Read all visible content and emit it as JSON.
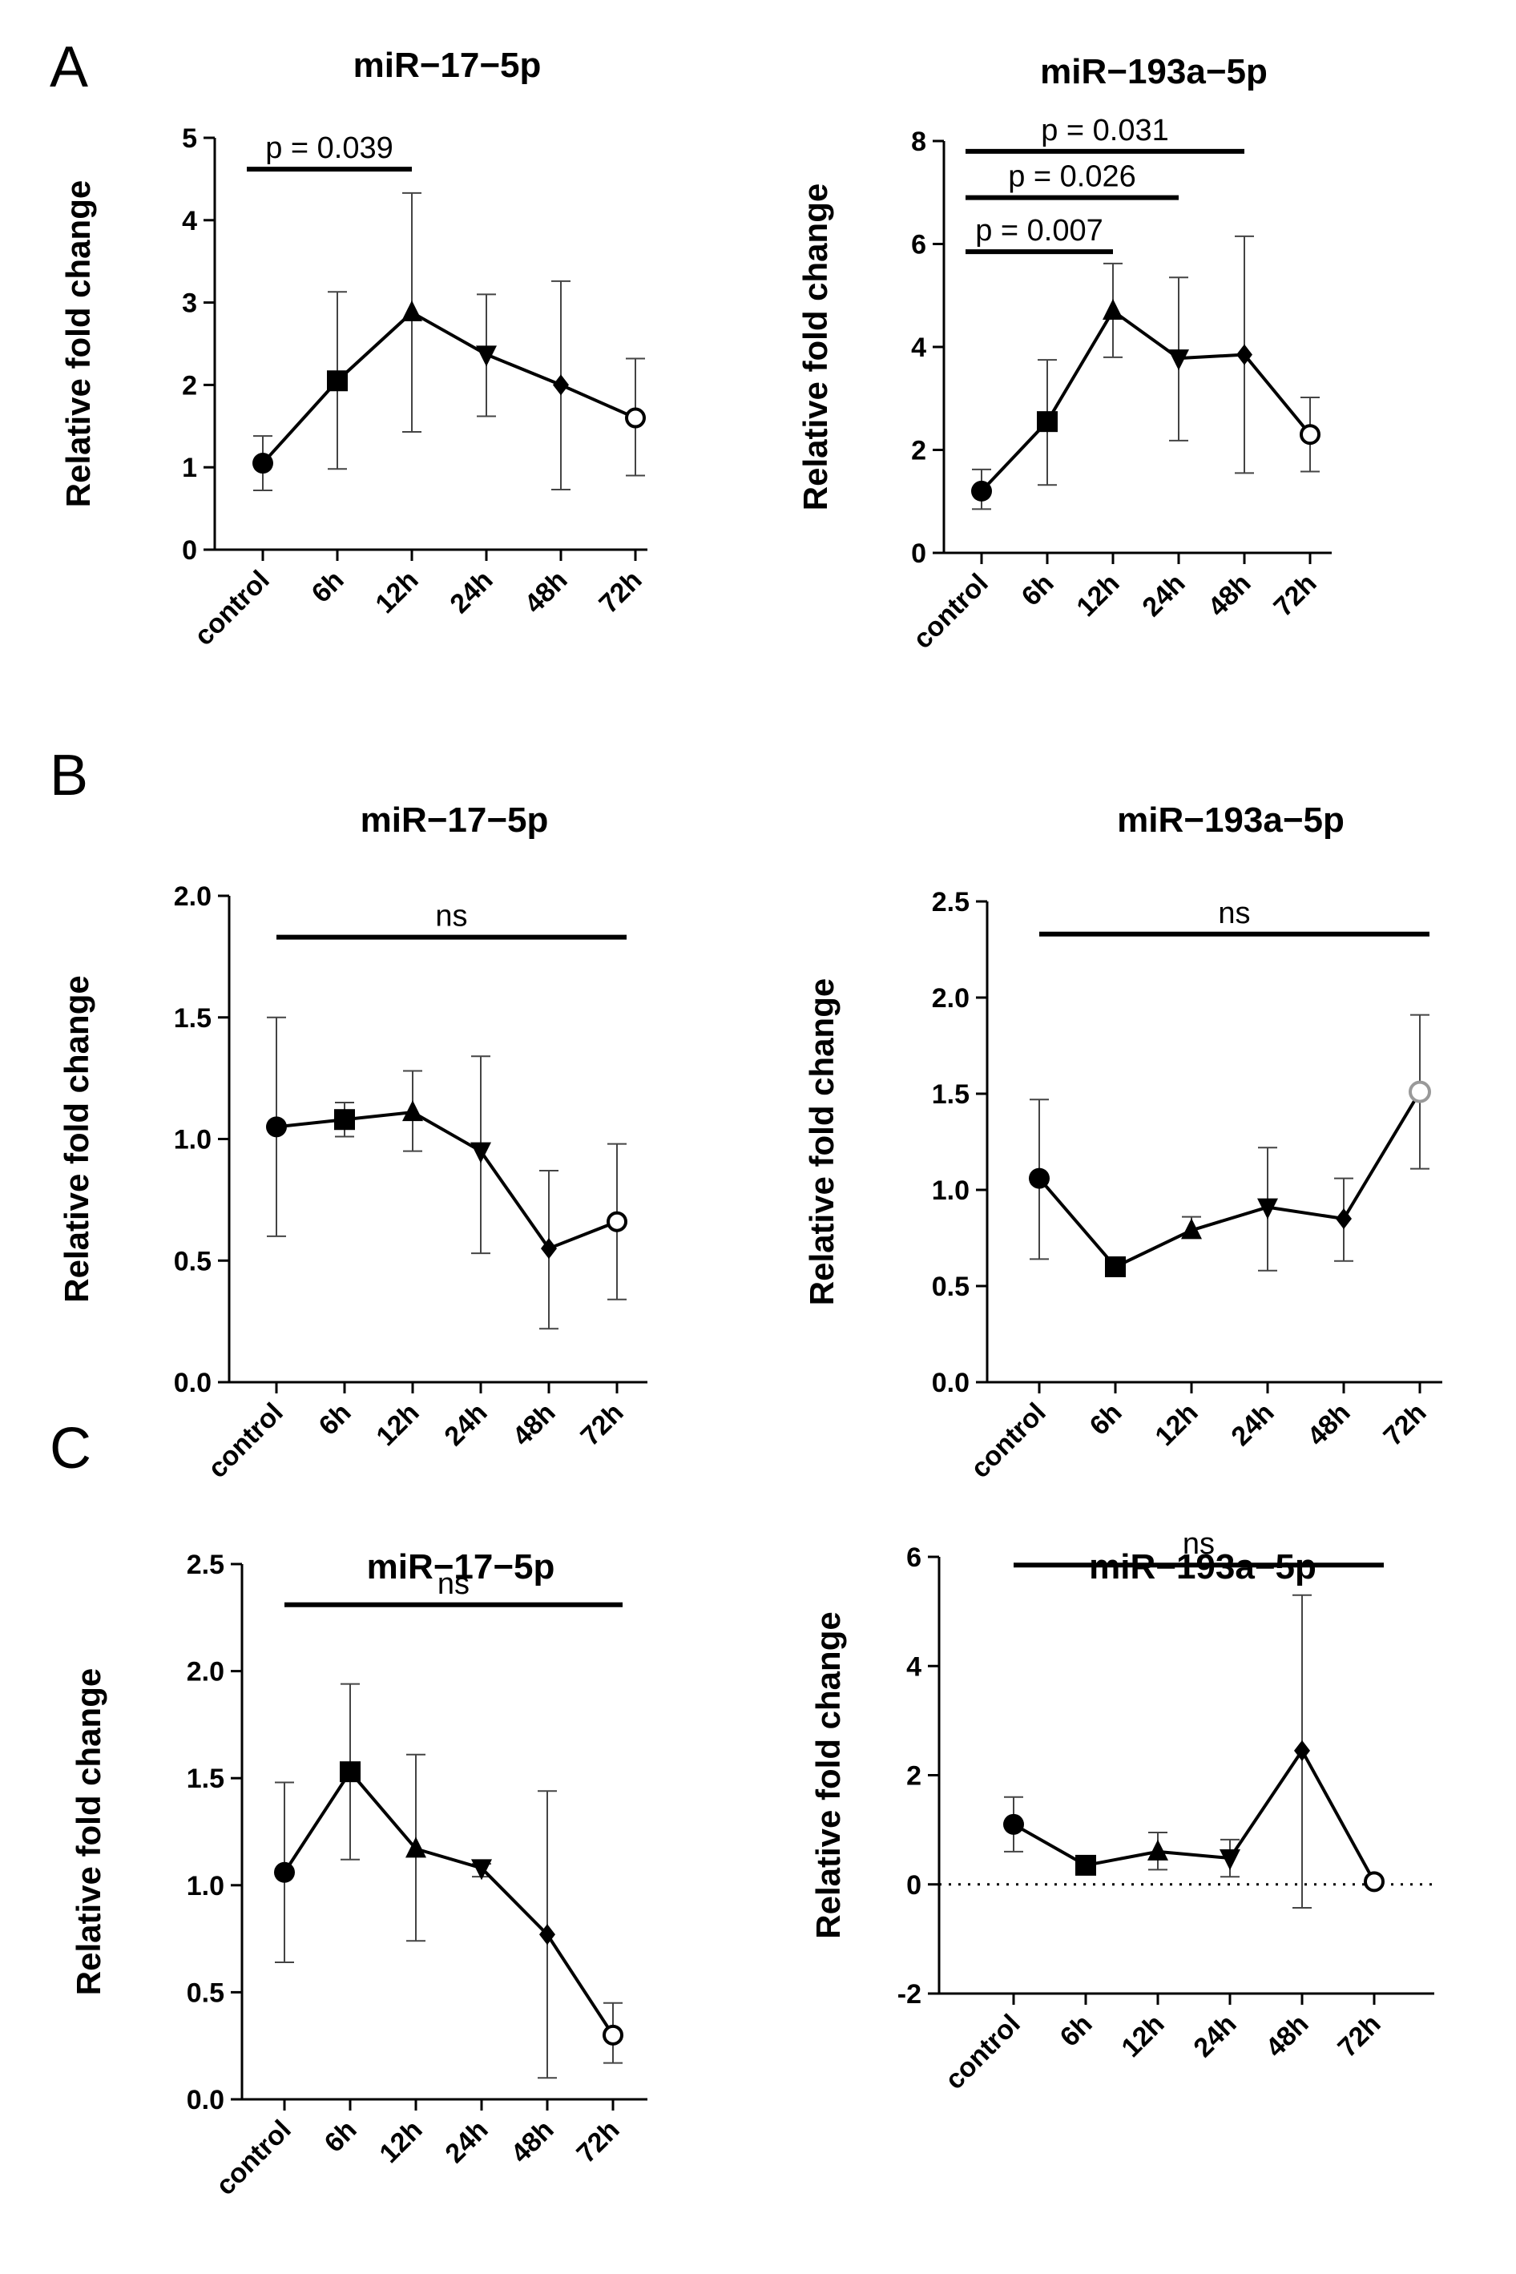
{
  "panels": [
    {
      "letter": "A"
    },
    {
      "letter": "B"
    },
    {
      "letter": "C"
    }
  ],
  "chart_data": [
    {
      "id": "A1",
      "type": "line",
      "title": "miR−17−5p",
      "ylabel": "Relative fold change",
      "ylim": [
        0,
        5
      ],
      "yticks": [
        0,
        1,
        2,
        3,
        4,
        5
      ],
      "ytick_labels": [
        "0",
        "1",
        "2",
        "3",
        "4",
        "5"
      ],
      "categories": [
        "control",
        "6h",
        "12h",
        "24h",
        "48h",
        "72h"
      ],
      "markers": [
        "circle",
        "square",
        "triangle-up",
        "triangle-down",
        "diamond",
        "circle-open"
      ],
      "values": [
        1.05,
        2.05,
        2.88,
        2.37,
        2.0,
        1.6
      ],
      "err_low": [
        0.72,
        0.98,
        1.43,
        1.62,
        0.73,
        0.9
      ],
      "err_high": [
        1.38,
        3.13,
        4.33,
        3.1,
        3.26,
        2.32
      ],
      "annotations": [
        {
          "text": "p = 0.039",
          "from": 0,
          "to": 2,
          "level": 4.62
        }
      ]
    },
    {
      "id": "A2",
      "type": "line",
      "title": "miR−193a−5p",
      "ylabel": "Relative fold change",
      "ylim": [
        0,
        8
      ],
      "yticks": [
        0,
        2,
        4,
        6,
        8
      ],
      "ytick_labels": [
        "0",
        "2",
        "4",
        "6",
        "8"
      ],
      "categories": [
        "control",
        "6h",
        "12h",
        "24h",
        "48h",
        "72h"
      ],
      "markers": [
        "circle",
        "square",
        "triangle-up",
        "triangle-down",
        "diamond",
        "circle-open"
      ],
      "values": [
        1.2,
        2.55,
        4.7,
        3.78,
        3.85,
        2.3
      ],
      "err_low": [
        0.85,
        1.32,
        3.8,
        2.18,
        1.55,
        1.58
      ],
      "err_high": [
        1.62,
        3.75,
        5.62,
        5.35,
        6.15,
        3.02
      ],
      "annotations": [
        {
          "text": "p = 0.031",
          "from": 0,
          "to": 4,
          "level": 7.8
        },
        {
          "text": "p = 0.026",
          "from": 0,
          "to": 3,
          "level": 6.9
        },
        {
          "text": "p = 0.007",
          "from": 0,
          "to": 2,
          "level": 5.85
        }
      ]
    },
    {
      "id": "B1",
      "type": "line",
      "title": "miR−17−5p",
      "ylabel": "Relative fold change",
      "ylim": [
        0,
        2.0
      ],
      "yticks": [
        0,
        0.5,
        1.0,
        1.5,
        2.0
      ],
      "ytick_labels": [
        "0.0",
        "0.5",
        "1.0",
        "1.5",
        "2.0"
      ],
      "categories": [
        "control",
        "6h",
        "12h",
        "24h",
        "48h",
        "72h"
      ],
      "markers": [
        "circle",
        "square",
        "triangle-up",
        "triangle-down",
        "diamond",
        "circle-open"
      ],
      "values": [
        1.05,
        1.08,
        1.11,
        0.95,
        0.55,
        0.66
      ],
      "err_low": [
        0.6,
        1.01,
        0.95,
        0.53,
        0.22,
        0.34
      ],
      "err_high": [
        1.5,
        1.15,
        1.28,
        1.34,
        0.87,
        0.98
      ],
      "annotations": [
        {
          "text": "ns",
          "from": 0,
          "to": 5,
          "level": 1.83
        }
      ]
    },
    {
      "id": "B2",
      "type": "line",
      "title": "miR−193a−5p",
      "ylabel": "Relative fold change",
      "ylim": [
        0,
        2.5
      ],
      "yticks": [
        0,
        0.5,
        1.0,
        1.5,
        2.0,
        2.5
      ],
      "ytick_labels": [
        "0.0",
        "0.5",
        "1.0",
        "1.5",
        "2.0",
        "2.5"
      ],
      "categories": [
        "control",
        "6h",
        "12h",
        "24h",
        "48h",
        "72h"
      ],
      "markers": [
        "circle",
        "square",
        "triangle-up",
        "triangle-down",
        "diamond",
        "circle-open-gray"
      ],
      "values": [
        1.06,
        0.6,
        0.79,
        0.91,
        0.85,
        1.51
      ],
      "err_low": [
        0.64,
        0.58,
        0.75,
        0.58,
        0.63,
        1.11
      ],
      "err_high": [
        1.47,
        0.62,
        0.86,
        1.22,
        1.06,
        1.91
      ],
      "annotations": [
        {
          "text": "ns",
          "from": 0,
          "to": 5,
          "level": 2.33
        }
      ]
    },
    {
      "id": "C1",
      "type": "line",
      "title": "miR−17−5p",
      "ylabel": "Relative fold change",
      "ylim": [
        0,
        2.5
      ],
      "yticks": [
        0,
        0.5,
        1.0,
        1.5,
        2.0,
        2.5
      ],
      "ytick_labels": [
        "0.0",
        "0.5",
        "1.0",
        "1.5",
        "2.0",
        "2.5"
      ],
      "categories": [
        "control",
        "6h",
        "12h",
        "24h",
        "48h",
        "72h"
      ],
      "markers": [
        "circle",
        "square",
        "triangle-up",
        "triangle-down",
        "diamond",
        "circle-open"
      ],
      "values": [
        1.06,
        1.53,
        1.17,
        1.08,
        0.77,
        0.3
      ],
      "err_low": [
        0.64,
        1.12,
        0.74,
        1.04,
        0.1,
        0.17
      ],
      "err_high": [
        1.48,
        1.94,
        1.61,
        1.1,
        1.44,
        0.45
      ],
      "annotations": [
        {
          "text": "ns",
          "from": 0,
          "to": 5,
          "level": 2.31
        }
      ]
    },
    {
      "id": "C2",
      "type": "line",
      "title": "miR−193a−5p",
      "ylabel": "Relative fold change",
      "ylim": [
        -2,
        6
      ],
      "yticks": [
        -2,
        0,
        2,
        4,
        6
      ],
      "ytick_labels": [
        "-2",
        "0",
        "2",
        "4",
        "6"
      ],
      "categories": [
        "control",
        "6h",
        "12h",
        "24h",
        "48h",
        "72h"
      ],
      "markers": [
        "circle",
        "square",
        "triangle-up",
        "triangle-down",
        "diamond",
        "circle-open"
      ],
      "values": [
        1.1,
        0.35,
        0.6,
        0.48,
        2.45,
        0.05
      ],
      "err_low": [
        0.6,
        0.18,
        0.27,
        0.14,
        -0.43,
        0.03
      ],
      "err_high": [
        1.6,
        0.5,
        0.95,
        0.82,
        5.3,
        0.07
      ],
      "zero_line": true,
      "annotations": [
        {
          "text": "ns",
          "from": 0,
          "to": 5,
          "level": 5.85
        }
      ]
    }
  ]
}
